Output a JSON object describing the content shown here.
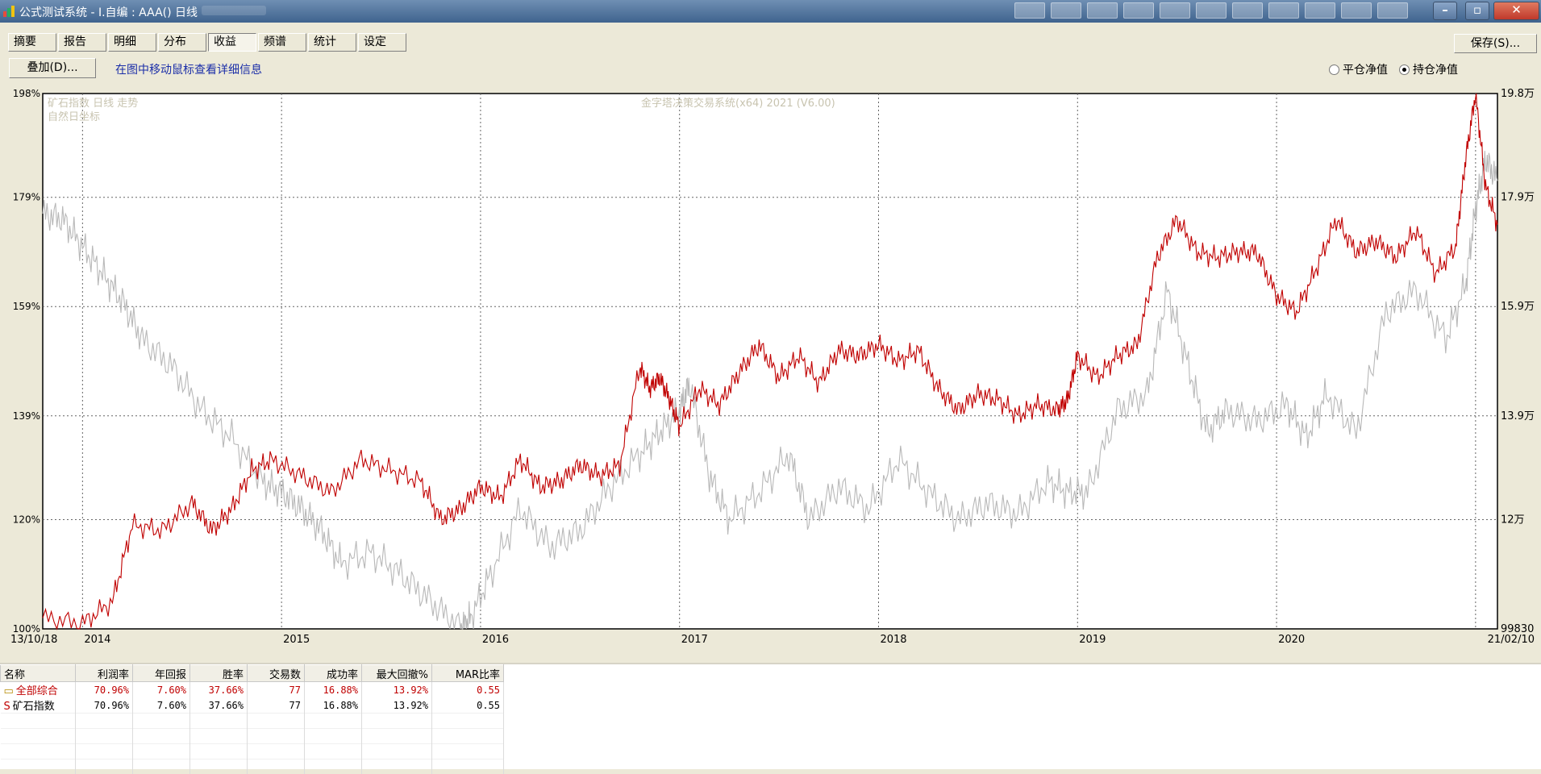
{
  "window": {
    "title": "公式测试系统 - I.自编 : AAA() 日线"
  },
  "tabs": [
    "摘要",
    "报告",
    "明细",
    "分布",
    "收益",
    "频谱",
    "统计",
    "设定"
  ],
  "active_tab": 4,
  "toolbar": {
    "save_label": "保存(S)...",
    "overlay_label": "叠加(D)...",
    "hint": "在图中移动鼠标查看详细信息"
  },
  "radios": [
    {
      "label": "平仓净值",
      "checked": false
    },
    {
      "label": "持仓净值",
      "checked": true
    }
  ],
  "chart_data": {
    "type": "line",
    "annotations": [
      "矿石指数 日线 走势",
      "自然日坐标",
      "金字塔决策交易系统(x64) 2021 (V6.00)"
    ],
    "left_axis_ticks": [
      "198%",
      "179%",
      "159%",
      "139%",
      "120%",
      "100%"
    ],
    "right_axis_ticks": [
      "19.8万",
      "17.9万",
      "15.9万",
      "13.9万",
      "12万",
      "99830"
    ],
    "x_ticks": [
      "13/10/18",
      "2014",
      "2015",
      "2016",
      "2017",
      "2018",
      "2019",
      "2020",
      "21/02/10"
    ],
    "ylim": [
      100,
      198
    ],
    "series": [
      {
        "name": "",
        "color": "#c00000",
        "x": [
          2013.8,
          2014.0,
          2014.15,
          2014.25,
          2014.4,
          2014.55,
          2014.65,
          2014.75,
          2014.85,
          2014.95,
          2015.1,
          2015.25,
          2015.4,
          2015.55,
          2015.7,
          2015.8,
          2015.9,
          2016.0,
          2016.1,
          2016.2,
          2016.3,
          2016.4,
          2016.5,
          2016.6,
          2016.7,
          2016.8,
          2016.85,
          2016.9,
          2016.95,
          2017.0,
          2017.1,
          2017.2,
          2017.3,
          2017.4,
          2017.5,
          2017.6,
          2017.7,
          2017.8,
          2017.9,
          2018.0,
          2018.1,
          2018.2,
          2018.3,
          2018.4,
          2018.5,
          2018.6,
          2018.7,
          2018.8,
          2018.9,
          2018.95,
          2019.0,
          2019.1,
          2019.2,
          2019.3,
          2019.4,
          2019.5,
          2019.6,
          2019.7,
          2019.8,
          2019.9,
          2020.0,
          2020.1,
          2020.2,
          2020.3,
          2020.4,
          2020.5,
          2020.6,
          2020.7,
          2020.8,
          2020.9,
          2020.95,
          2021.0,
          2021.05,
          2021.11
        ],
        "values": [
          102,
          101,
          105,
          119,
          118,
          123,
          118,
          122,
          129,
          131,
          128,
          125,
          131,
          129,
          127,
          120,
          122,
          126,
          124,
          131,
          126,
          127,
          130,
          128,
          130,
          148,
          144,
          146,
          142,
          137,
          144,
          141,
          147,
          152,
          146,
          150,
          145,
          151,
          150,
          152,
          149,
          151,
          144,
          140,
          143,
          142,
          139,
          141,
          140,
          142,
          150,
          146,
          150,
          152,
          168,
          175,
          169,
          168,
          169,
          169,
          161,
          158,
          166,
          175,
          169,
          171,
          168,
          173,
          165,
          170,
          186,
          198,
          181,
          174
        ]
      },
      {
        "name": "",
        "color": "#b8b8b8",
        "x": [
          2013.8,
          2013.9,
          2014.0,
          2014.1,
          2014.2,
          2014.3,
          2014.45,
          2014.6,
          2014.75,
          2014.9,
          2015.0,
          2015.1,
          2015.2,
          2015.3,
          2015.45,
          2015.6,
          2015.75,
          2015.9,
          2015.95,
          2016.05,
          2016.2,
          2016.35,
          2016.5,
          2016.65,
          2016.8,
          2016.9,
          2017.0,
          2017.05,
          2017.15,
          2017.25,
          2017.4,
          2017.55,
          2017.65,
          2017.8,
          2017.95,
          2018.1,
          2018.25,
          2018.4,
          2018.55,
          2018.7,
          2018.85,
          2018.95,
          2019.05,
          2019.2,
          2019.35,
          2019.45,
          2019.55,
          2019.65,
          2019.75,
          2019.9,
          2020.05,
          2020.15,
          2020.25,
          2020.4,
          2020.55,
          2020.7,
          2020.85,
          2020.95,
          2021.0,
          2021.05,
          2021.11
        ],
        "values": [
          176,
          175,
          170,
          165,
          160,
          153,
          148,
          140,
          135,
          127,
          125,
          122,
          118,
          112,
          114,
          110,
          105,
          100,
          102,
          110,
          122,
          115,
          118,
          126,
          132,
          136,
          140,
          145,
          128,
          120,
          125,
          132,
          120,
          126,
          122,
          131,
          125,
          120,
          123,
          121,
          127,
          125,
          125,
          140,
          143,
          162,
          149,
          136,
          140,
          138,
          141,
          135,
          143,
          136,
          158,
          162,
          153,
          163,
          177,
          186,
          182
        ]
      }
    ]
  },
  "stats": {
    "headers": [
      "名称",
      "利润率",
      "年回报",
      "胜率",
      "交易数",
      "成功率",
      "最大回撤%",
      "MAR比率"
    ],
    "rows": [
      {
        "icon": "folder-icon",
        "cells": [
          "全部综合",
          "70.96%",
          "7.60%",
          "37.66%",
          "77",
          "16.88%",
          "13.92%",
          "0.55"
        ]
      },
      {
        "icon": "s-icon",
        "cells": [
          "矿石指数",
          "70.96%",
          "7.60%",
          "37.66%",
          "77",
          "16.88%",
          "13.92%",
          "0.55"
        ]
      }
    ]
  }
}
